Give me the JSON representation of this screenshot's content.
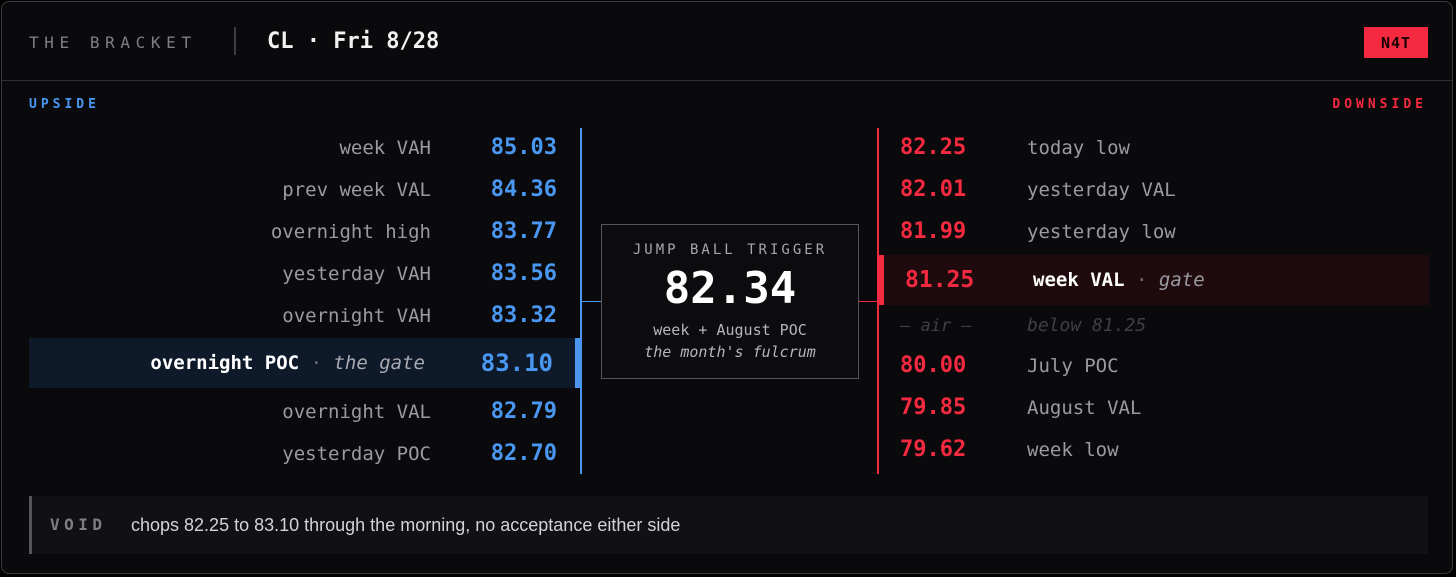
{
  "header": {
    "brand": "THE BRACKET",
    "ticker": "CL · Fri 8/28",
    "badge": "N4T"
  },
  "upside": {
    "title": "UPSIDE",
    "rows": [
      {
        "label": "week VAH",
        "price": "85.03"
      },
      {
        "label": "prev week VAL",
        "price": "84.36"
      },
      {
        "label": "overnight high",
        "price": "83.77"
      },
      {
        "label": "yesterday VAH",
        "price": "83.56"
      },
      {
        "label": "overnight VAH",
        "price": "83.32"
      },
      {
        "label": "overnight POC",
        "sep": "·",
        "note": "the gate",
        "price": "83.10"
      },
      {
        "label": "overnight VAL",
        "price": "82.79"
      },
      {
        "label": "yesterday POC",
        "price": "82.70"
      }
    ]
  },
  "trigger": {
    "label": "JUMP BALL TRIGGER",
    "price": "82.34",
    "sub": "week + August POC",
    "note": "the month's fulcrum"
  },
  "downside": {
    "title": "DOWNSIDE",
    "rows": [
      {
        "price": "82.25",
        "label": "today low"
      },
      {
        "price": "82.01",
        "label": "yesterday VAL"
      },
      {
        "price": "81.99",
        "label": "yesterday low"
      },
      {
        "price": "81.25",
        "label": "week VAL",
        "sep": "·",
        "note": "gate"
      },
      {
        "price": "— air —",
        "label": "below 81.25"
      },
      {
        "price": "80.00",
        "label": "July POC"
      },
      {
        "price": "79.85",
        "label": "August VAL"
      },
      {
        "price": "79.62",
        "label": "week low"
      }
    ]
  },
  "void": {
    "label": "VOID",
    "text": "chops 82.25 to 83.10 through the morning, no acceptance either side"
  },
  "colors": {
    "upside": "#4a97f2",
    "downside": "#f5293f",
    "background": "#0a0a0c"
  }
}
